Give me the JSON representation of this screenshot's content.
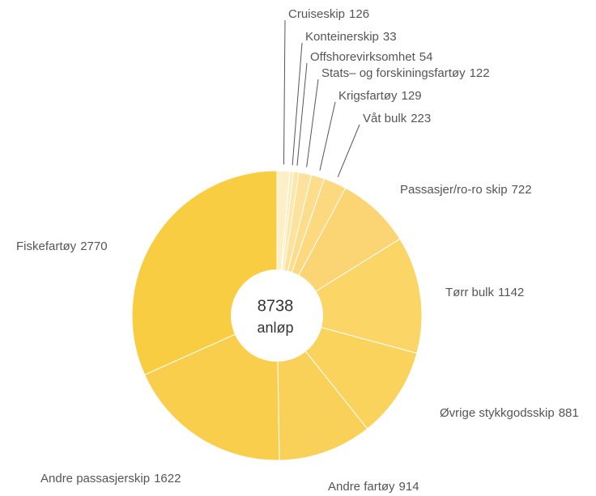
{
  "chart_data": {
    "type": "donut",
    "categories": [
      "Cruiseskip",
      "Konteinerskip",
      "Offshorevirksomhet",
      "Stats– og forskiningsfartøy",
      "Krigsfartøy",
      "Våt bulk",
      "Passasjer/ro-ro skip",
      "Tørr bulk",
      "Øvrige stykkgodsskip",
      "Andre fartøy",
      "Andre passasjerskip",
      "Fiskefartøy"
    ],
    "values": [
      126,
      33,
      54,
      122,
      129,
      223,
      722,
      1142,
      881,
      914,
      1622,
      2770
    ],
    "colors": [
      "#fdf0c8",
      "#fdebb8",
      "#fde7aa",
      "#fce29c",
      "#fcdd8c",
      "#fcd97e",
      "#fbd574",
      "#fbd565",
      "#fad35c",
      "#fad158",
      "#f9ce4c",
      "#f9cd42"
    ],
    "center_value": 8738,
    "center_label": "anløp"
  }
}
